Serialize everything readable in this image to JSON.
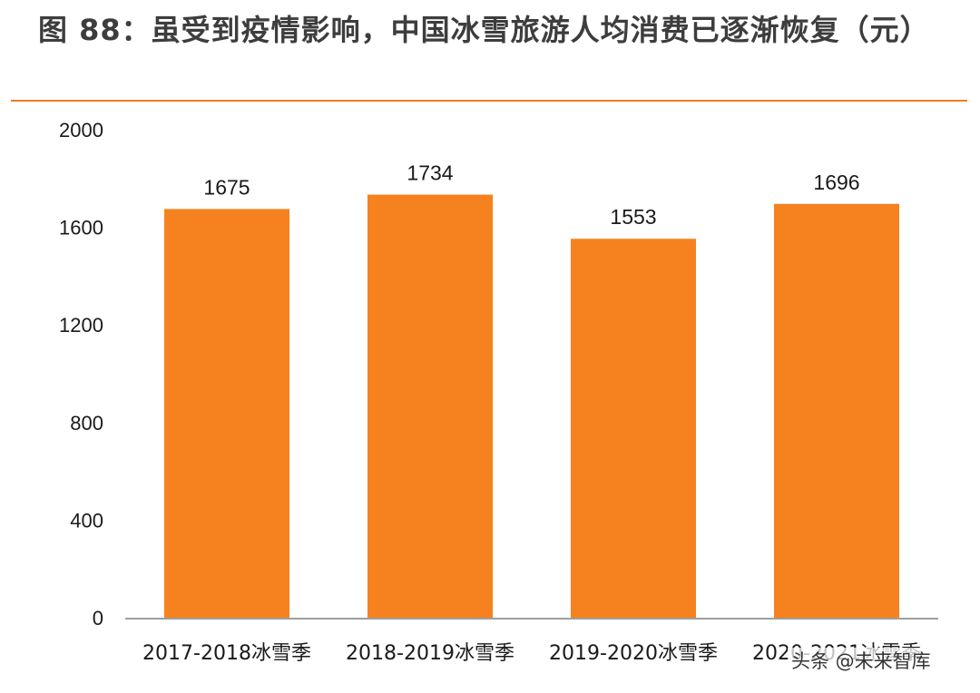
{
  "figure": {
    "title": "图 88：虽受到疫情影响，中国冰雪旅游人均消费已逐渐恢复（元）",
    "watermark": "头条 @未来智库"
  },
  "colors": {
    "bar": "#f5821f",
    "rule": "#f07d1f",
    "axis": "#7f7f7f",
    "text": "#1a1a1a"
  },
  "chart_data": {
    "type": "bar",
    "title": "",
    "xlabel": "",
    "ylabel": "",
    "categories": [
      "2017-2018冰雪季",
      "2018-2019冰雪季",
      "2019-2020冰雪季",
      "2020-2021冰雪季"
    ],
    "values": [
      1675,
      1734,
      1553,
      1696
    ],
    "data_labels": [
      "1675",
      "1734",
      "1553",
      "1696"
    ],
    "ylim": [
      0,
      2000
    ],
    "yticks": [
      0,
      400,
      800,
      1200,
      1600,
      2000
    ],
    "grid": false,
    "legend": "none"
  }
}
